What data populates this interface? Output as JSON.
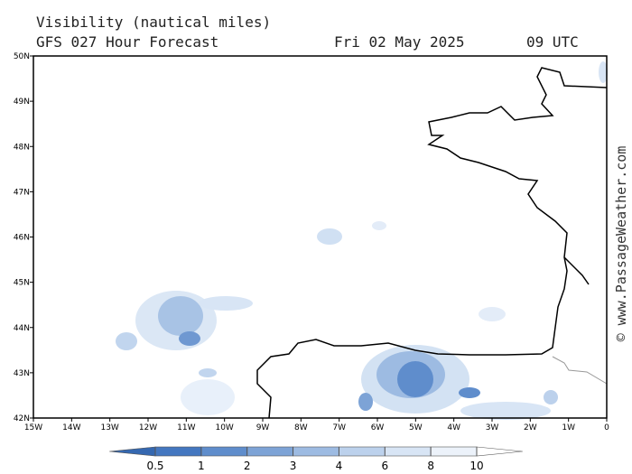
{
  "map": {
    "title": "Visibility (nautical miles)",
    "subtitle": "GFS 027 Hour Forecast",
    "date": "Fri 02 May 2025",
    "time": "09 UTC",
    "watermark": "© www.PassageWeather.com",
    "xlim": [
      -15,
      0
    ],
    "ylim": [
      42,
      50
    ],
    "xticks": [
      {
        "value": -15,
        "label": "15W"
      },
      {
        "value": -14,
        "label": "14W"
      },
      {
        "value": -13,
        "label": "13W"
      },
      {
        "value": -12,
        "label": "12W"
      },
      {
        "value": -11,
        "label": "11W"
      },
      {
        "value": -10,
        "label": "10W"
      },
      {
        "value": -9,
        "label": "9W"
      },
      {
        "value": -8,
        "label": "8W"
      },
      {
        "value": -7,
        "label": "7W"
      },
      {
        "value": -6,
        "label": "6W"
      },
      {
        "value": -5,
        "label": "5W"
      },
      {
        "value": -4,
        "label": "4W"
      },
      {
        "value": -3,
        "label": "3W"
      },
      {
        "value": -2,
        "label": "2W"
      },
      {
        "value": -1,
        "label": "1W"
      },
      0
    ],
    "yticks": [
      {
        "value": 42,
        "label": "42N"
      },
      {
        "value": 43,
        "label": "43N"
      },
      {
        "value": 44,
        "label": "44N"
      },
      {
        "value": 45,
        "label": "45N"
      },
      {
        "value": 46,
        "label": "46N"
      },
      {
        "value": 47,
        "label": "47N"
      },
      {
        "value": 48,
        "label": "48N"
      },
      {
        "value": 49,
        "label": "49N"
      },
      {
        "value": 50,
        "label": "50N"
      }
    ],
    "colorbar": {
      "levels": [
        0.5,
        1,
        2,
        3,
        4,
        6,
        8,
        10
      ],
      "colors": [
        "#3568b0",
        "#4477c0",
        "#5f8dcc",
        "#7da3d6",
        "#9dbbe2",
        "#bcd1ec",
        "#d8e5f5",
        "#ecf2fa",
        "#ffffff"
      ]
    }
  }
}
